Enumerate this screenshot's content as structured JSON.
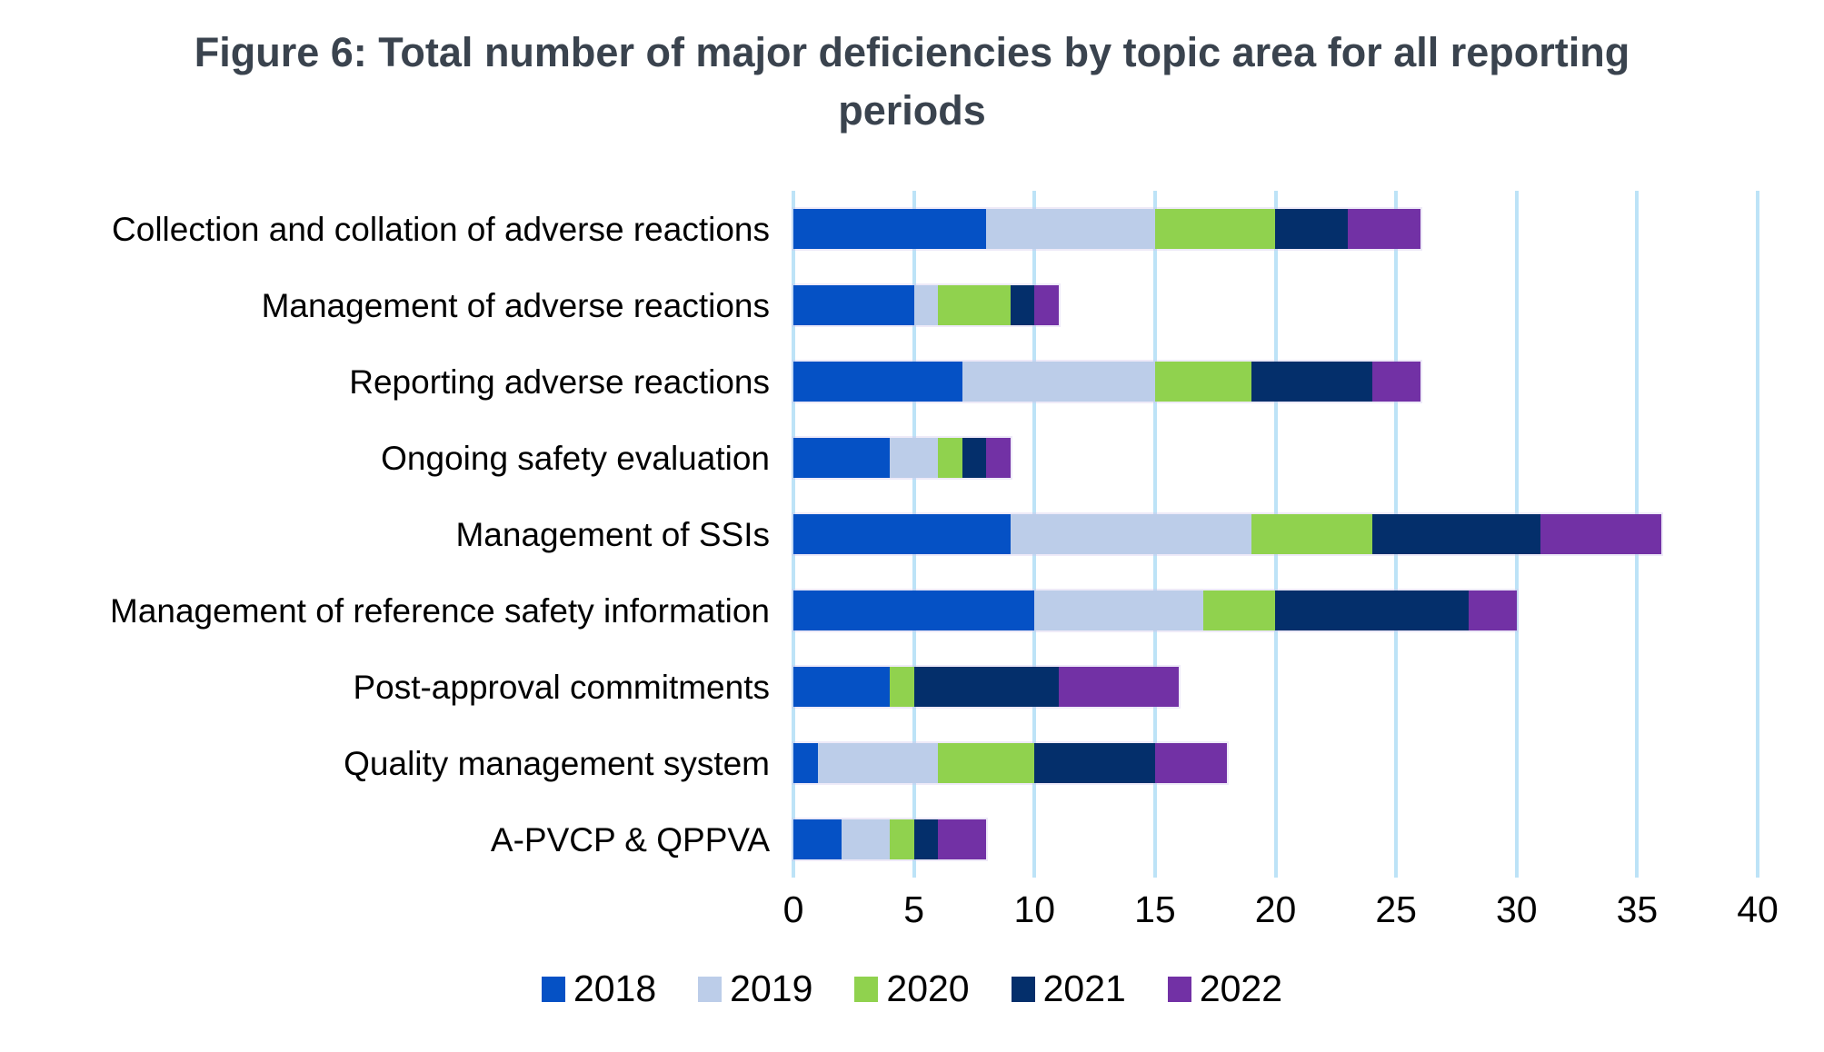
{
  "chart_data": {
    "type": "bar",
    "orientation": "horizontal",
    "stacked": true,
    "title": "Figure 6: Total number of major deficiencies by topic area for all reporting periods",
    "title_color": "#3a434e",
    "categories": [
      "Collection and collation of adverse reactions",
      "Management of adverse reactions",
      "Reporting adverse reactions",
      "Ongoing safety evaluation",
      "Management of SSIs",
      "Management of reference safety information",
      "Post-approval commitments",
      "Quality management system",
      "A-PVCP & QPPVA"
    ],
    "series": [
      {
        "name": "2018",
        "color": "#0551c5",
        "values": [
          8,
          5,
          7,
          4,
          9,
          10,
          4,
          1,
          2
        ]
      },
      {
        "name": "2019",
        "color": "#bccde9",
        "values": [
          7,
          1,
          8,
          2,
          10,
          7,
          0,
          5,
          2
        ]
      },
      {
        "name": "2020",
        "color": "#90d24e",
        "values": [
          5,
          3,
          4,
          1,
          5,
          3,
          1,
          4,
          1
        ]
      },
      {
        "name": "2021",
        "color": "#042f6b",
        "values": [
          3,
          1,
          5,
          1,
          7,
          8,
          6,
          5,
          1
        ]
      },
      {
        "name": "2022",
        "color": "#7231a5",
        "values": [
          3,
          1,
          2,
          1,
          5,
          2,
          5,
          3,
          2
        ]
      }
    ],
    "totals": [
      26,
      11,
      26,
      9,
      36,
      30,
      16,
      18,
      8
    ],
    "x_ticks": [
      "0",
      "5",
      "10",
      "15",
      "20",
      "25",
      "30",
      "35",
      "40"
    ],
    "xlim": [
      0,
      40
    ],
    "xlabel": "",
    "ylabel": "",
    "grid": "vertical",
    "grid_color": "#bde3f7",
    "legend_position": "bottom",
    "legend_labels": [
      "2018",
      "2019",
      "2020",
      "2021",
      "2022"
    ]
  }
}
